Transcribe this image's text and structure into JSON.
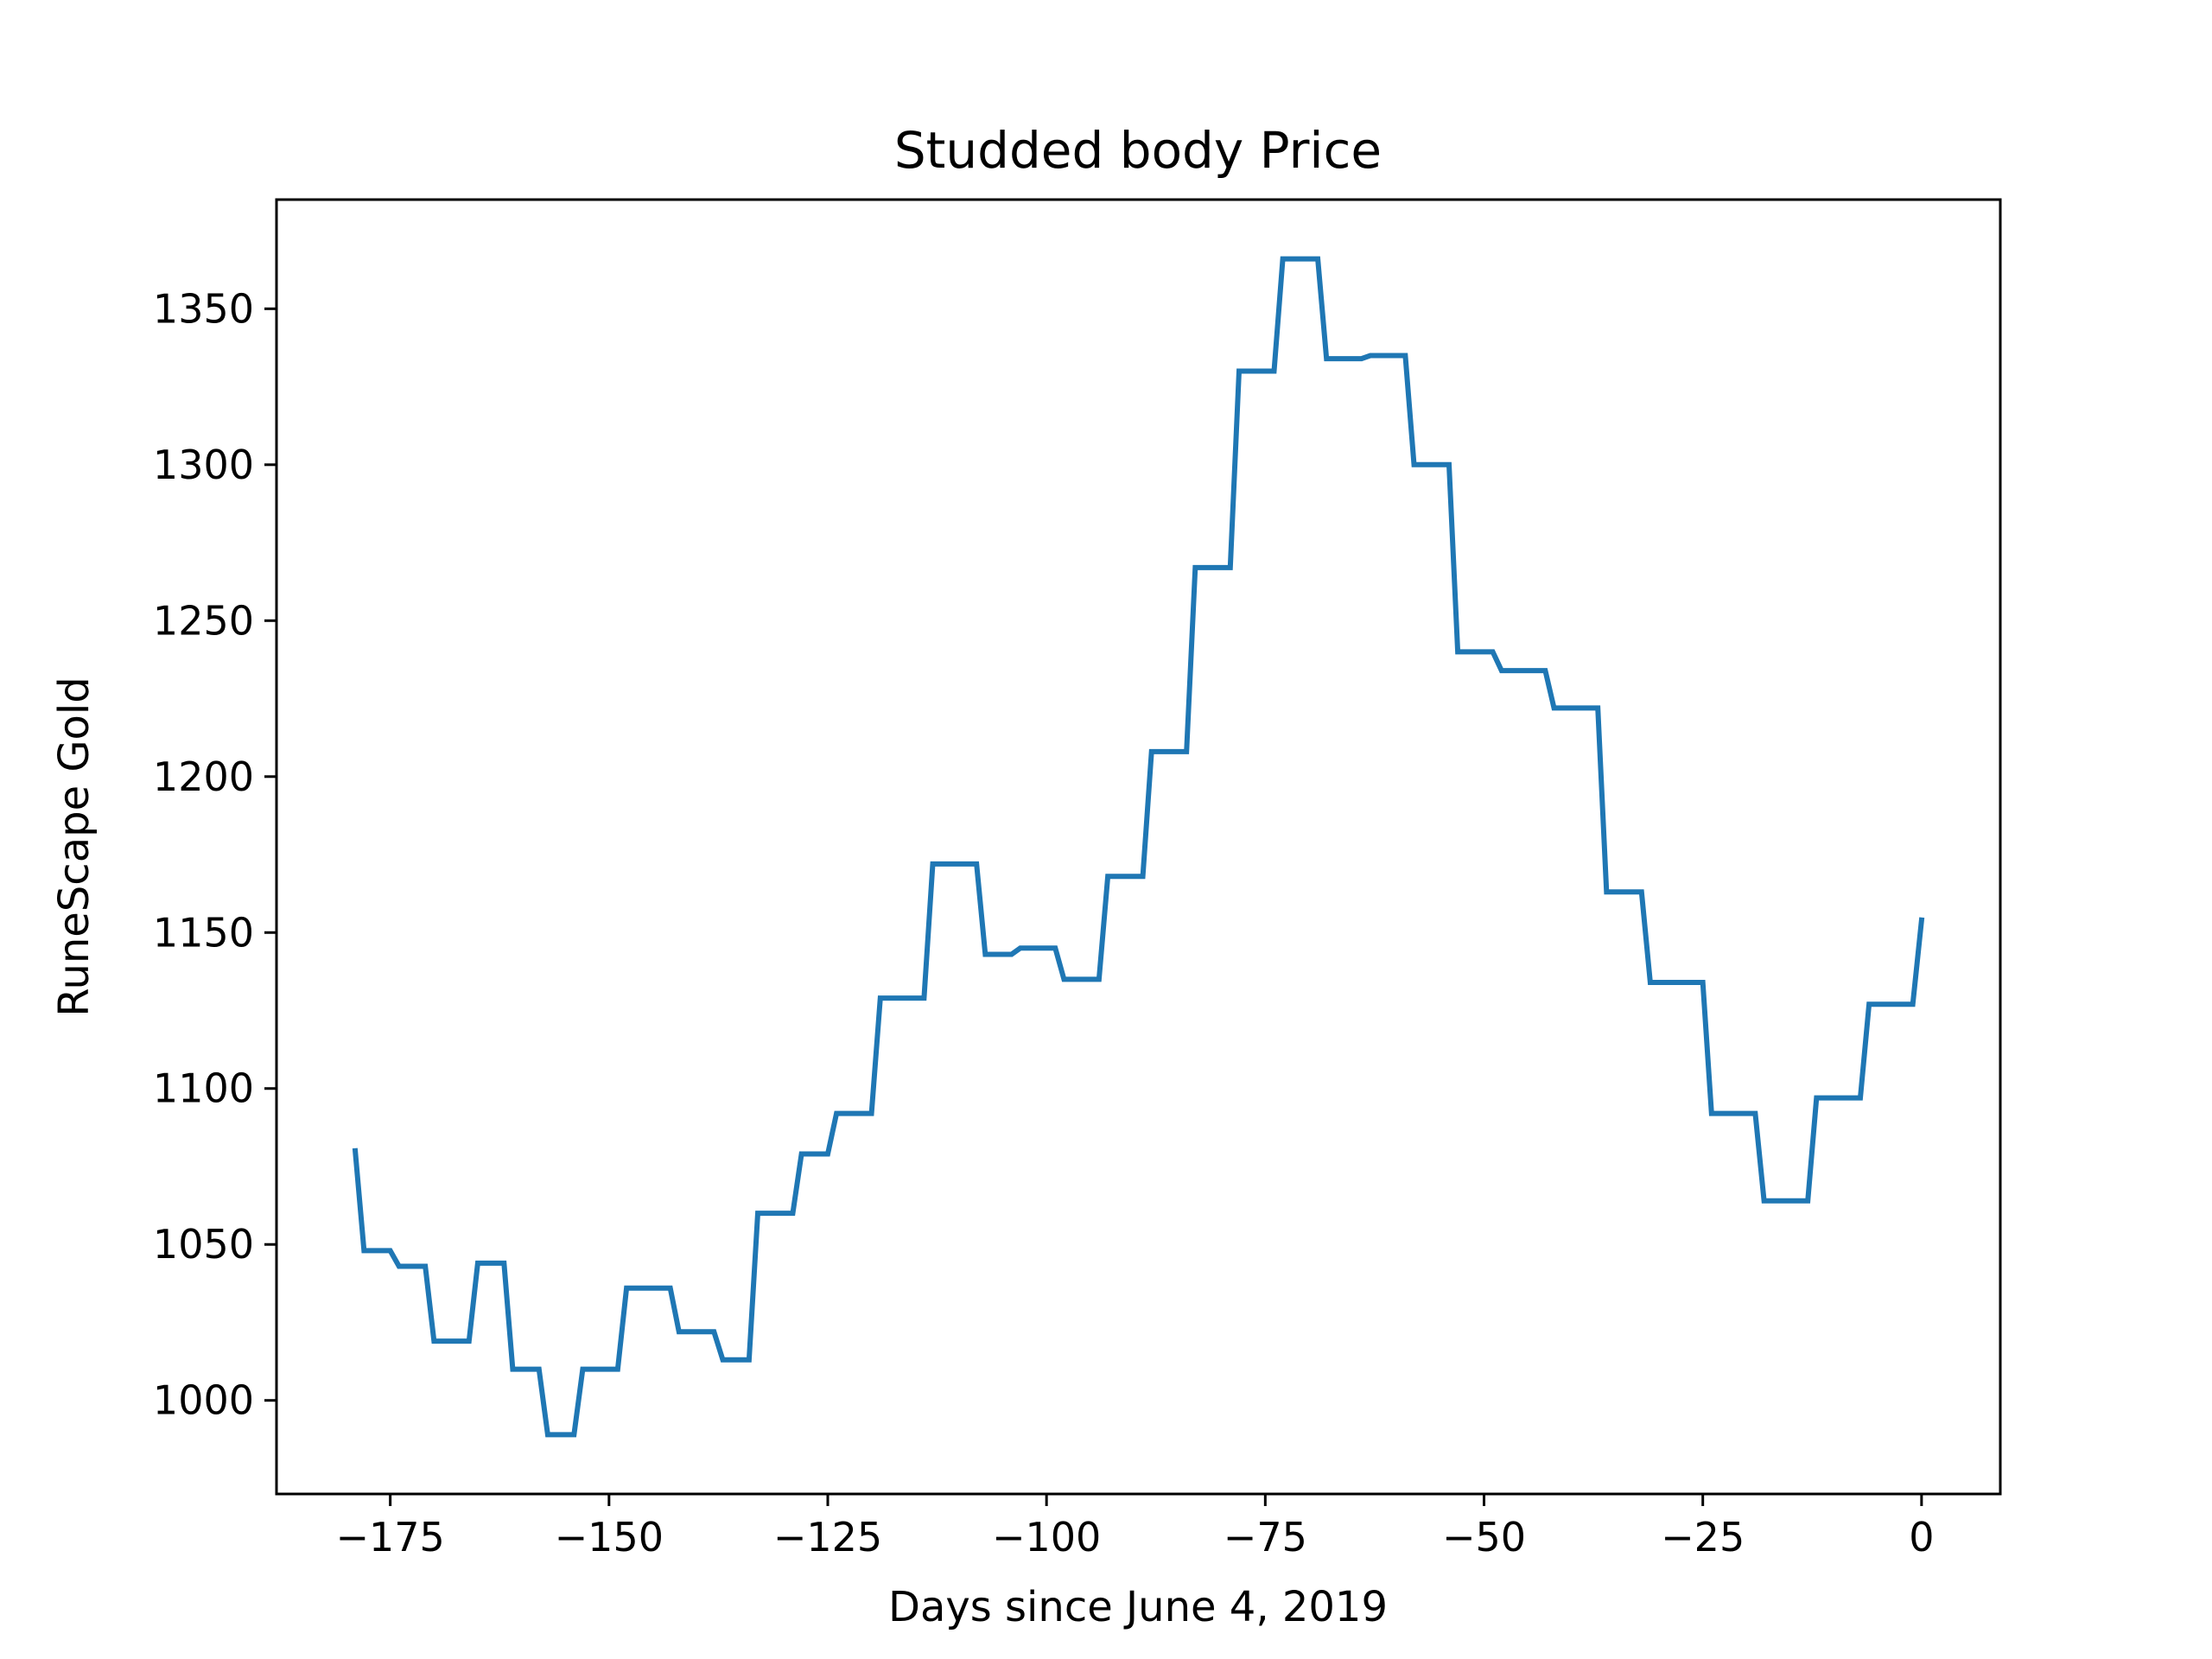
{
  "chart_data": {
    "type": "line",
    "title": "Studded body Price",
    "xlabel": "Days since June 4, 2019",
    "ylabel": "RuneScape Gold",
    "xlim": [
      -188,
      9
    ],
    "ylim": [
      970,
      1385
    ],
    "xticks": [
      {
        "value": -175,
        "label": "−175"
      },
      {
        "value": -150,
        "label": "−150"
      },
      {
        "value": -125,
        "label": "−125"
      },
      {
        "value": -100,
        "label": "−100"
      },
      {
        "value": -75,
        "label": "−75"
      },
      {
        "value": -50,
        "label": "−50"
      },
      {
        "value": -25,
        "label": "−25"
      },
      {
        "value": 0,
        "label": "0"
      }
    ],
    "yticks": [
      {
        "value": 1000,
        "label": "1000"
      },
      {
        "value": 1050,
        "label": "1050"
      },
      {
        "value": 1100,
        "label": "1100"
      },
      {
        "value": 1150,
        "label": "1150"
      },
      {
        "value": 1200,
        "label": "1200"
      },
      {
        "value": 1250,
        "label": "1250"
      },
      {
        "value": 1300,
        "label": "1300"
      },
      {
        "value": 1350,
        "label": "1350"
      }
    ],
    "grid": false,
    "series": [
      {
        "color": "#1f77b4",
        "x": [
          -179,
          -178,
          -175,
          -174,
          -171,
          -170,
          -166,
          -165,
          -162,
          -161,
          -158,
          -157,
          -154,
          -153,
          -149,
          -148,
          -143,
          -142,
          -138,
          -137,
          -134,
          -133,
          -129,
          -128,
          -125,
          -124,
          -120,
          -119,
          -114,
          -113,
          -108,
          -107,
          -104,
          -103,
          -99,
          -98,
          -94,
          -93,
          -89,
          -88,
          -84,
          -83,
          -79,
          -78,
          -74,
          -73,
          -69,
          -68,
          -64,
          -63,
          -59,
          -58,
          -54,
          -53,
          -49,
          -48,
          -43,
          -42,
          -37,
          -36,
          -32,
          -31,
          -25,
          -24,
          -19,
          -18,
          -13,
          -12,
          -7,
          -6,
          -1,
          0
        ],
        "y": [
          1080,
          1048,
          1048,
          1043,
          1043,
          1019,
          1019,
          1044,
          1044,
          1010,
          1010,
          989,
          989,
          1010,
          1010,
          1036,
          1036,
          1022,
          1022,
          1013,
          1013,
          1060,
          1060,
          1079,
          1079,
          1092,
          1092,
          1129,
          1129,
          1172,
          1172,
          1143,
          1143,
          1145,
          1145,
          1135,
          1135,
          1168,
          1168,
          1208,
          1208,
          1267,
          1267,
          1330,
          1330,
          1366,
          1366,
          1334,
          1334,
          1335,
          1335,
          1300,
          1300,
          1240,
          1240,
          1234,
          1234,
          1222,
          1222,
          1163,
          1163,
          1134,
          1134,
          1092,
          1092,
          1064,
          1064,
          1097,
          1097,
          1127,
          1127,
          1154
        ]
      }
    ]
  }
}
